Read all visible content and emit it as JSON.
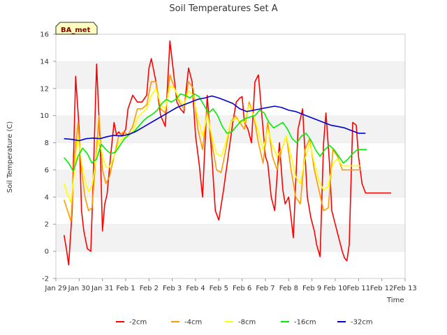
{
  "chart_data": {
    "type": "line",
    "title": "Soil Temperatures Set A",
    "xlabel": "Time",
    "ylabel": "Soil Temperature (C)",
    "badge": "BA_met",
    "ylim": [
      -2,
      16
    ],
    "yticks": [
      -2,
      0,
      2,
      4,
      6,
      8,
      10,
      12,
      14,
      16
    ],
    "xlim": [
      0,
      15
    ],
    "xticks": [
      0,
      1,
      2,
      3,
      4,
      5,
      6,
      7,
      8,
      9,
      10,
      11,
      12,
      13,
      14,
      15
    ],
    "xtick_labels": [
      "Jan 29",
      "Jan 30",
      "Jan 31",
      "Feb 1",
      "Feb 2",
      "Feb 3",
      "Feb 4",
      "Feb 5",
      "Feb 6",
      "Feb 7",
      "Feb 8",
      "Feb 9",
      "Feb 10",
      "Feb 11",
      "Feb 12",
      "Feb 13"
    ],
    "grid": "horizontal bands",
    "legend_position": "bottom",
    "series": [
      {
        "name": "-2cm",
        "color": "#ff0000",
        "x": [
          0.35,
          0.45,
          0.55,
          0.7,
          0.85,
          1.0,
          1.1,
          1.2,
          1.35,
          1.5,
          1.6,
          1.75,
          1.9,
          2.0,
          2.1,
          2.2,
          2.35,
          2.5,
          2.6,
          2.7,
          2.85,
          3.0,
          3.1,
          3.3,
          3.5,
          3.7,
          3.9,
          4.0,
          4.1,
          4.3,
          4.5,
          4.7,
          4.9,
          5.1,
          5.2,
          5.35,
          5.5,
          5.6,
          5.7,
          5.85,
          6.0,
          6.15,
          6.3,
          6.5,
          6.7,
          6.85,
          7.0,
          7.2,
          7.4,
          7.6,
          7.75,
          7.9,
          8.0,
          8.1,
          8.25,
          8.4,
          8.55,
          8.7,
          8.85,
          9.0,
          9.1,
          9.25,
          9.4,
          9.6,
          9.75,
          9.85,
          10.0,
          10.1,
          10.2,
          10.4,
          10.6,
          10.8,
          10.95,
          11.1,
          11.2,
          11.35,
          11.5,
          11.6,
          11.75,
          11.85,
          12.0,
          12.15,
          12.3,
          12.4,
          12.5,
          12.6,
          12.75,
          12.9,
          13.0,
          13.15,
          13.3,
          13.4,
          13.55,
          13.7,
          13.85,
          14.0,
          14.15,
          14.3,
          14.4
        ],
        "y": [
          1.2,
          0.2,
          -1.0,
          3.0,
          12.9,
          9.0,
          3.0,
          1.5,
          0.2,
          0.0,
          5.0,
          13.8,
          8.0,
          1.5,
          3.5,
          4.2,
          7.0,
          9.5,
          8.6,
          8.8,
          8.5,
          9.0,
          10.5,
          11.5,
          11.0,
          11.0,
          11.5,
          13.5,
          14.2,
          12.5,
          10.0,
          9.2,
          15.5,
          12.5,
          11.0,
          10.5,
          10.2,
          12.0,
          13.5,
          12.5,
          8.5,
          6.5,
          4.0,
          11.5,
          7.0,
          3.0,
          2.3,
          4.5,
          7.0,
          9.5,
          11.0,
          11.3,
          11.4,
          9.5,
          9.0,
          8.0,
          12.5,
          13.0,
          10.0,
          7.0,
          6.5,
          4.0,
          3.0,
          8.0,
          4.5,
          3.5,
          4.0,
          2.5,
          1.0,
          9.0,
          10.5,
          4.0,
          2.5,
          1.5,
          0.5,
          -0.4,
          8.0,
          10.2,
          6.5,
          3.0,
          2.0,
          1.0,
          0.0,
          -0.5,
          -0.7,
          0.5,
          9.5,
          9.3,
          7.0,
          5.0,
          4.3,
          4.3,
          4.3,
          4.3,
          4.3,
          4.3,
          4.3,
          4.3,
          4.3
        ]
      },
      {
        "name": "-4cm",
        "color": "#ff9900",
        "x": [
          0.35,
          0.5,
          0.65,
          0.8,
          0.95,
          1.1,
          1.25,
          1.4,
          1.55,
          1.7,
          1.85,
          2.0,
          2.15,
          2.3,
          2.5,
          2.7,
          2.9,
          3.1,
          3.3,
          3.5,
          3.7,
          3.9,
          4.1,
          4.3,
          4.5,
          4.7,
          4.9,
          5.1,
          5.3,
          5.5,
          5.7,
          5.9,
          6.1,
          6.3,
          6.5,
          6.7,
          6.9,
          7.1,
          7.3,
          7.5,
          7.7,
          7.9,
          8.1,
          8.3,
          8.5,
          8.7,
          8.9,
          9.1,
          9.3,
          9.5,
          9.7,
          9.9,
          10.1,
          10.3,
          10.5,
          10.7,
          10.9,
          11.1,
          11.3,
          11.5,
          11.7,
          11.9,
          12.1,
          12.3,
          12.5,
          12.7,
          12.9,
          13.1
        ],
        "y": [
          3.8,
          3.0,
          2.2,
          7.0,
          9.5,
          6.0,
          4.0,
          3.0,
          3.2,
          6.5,
          10.0,
          6.0,
          5.0,
          5.5,
          7.0,
          8.5,
          8.8,
          8.6,
          9.2,
          10.5,
          10.5,
          10.8,
          12.5,
          12.5,
          10.5,
          10.2,
          13.0,
          12.0,
          11.0,
          10.5,
          12.5,
          12.0,
          9.0,
          7.5,
          10.5,
          8.0,
          6.0,
          5.8,
          7.5,
          9.5,
          10.0,
          9.5,
          9.0,
          11.0,
          10.0,
          8.0,
          6.5,
          9.5,
          7.0,
          6.0,
          7.5,
          8.5,
          6.0,
          4.0,
          3.5,
          7.5,
          8.3,
          6.0,
          4.5,
          3.0,
          3.2,
          7.5,
          7.0,
          6.0,
          6.0,
          6.0,
          6.0,
          6.0
        ]
      },
      {
        "name": "-8cm",
        "color": "#ffff00",
        "x": [
          0.35,
          0.5,
          0.65,
          0.8,
          0.95,
          1.1,
          1.25,
          1.4,
          1.55,
          1.7,
          1.85,
          2.0,
          2.15,
          2.3,
          2.5,
          2.7,
          2.9,
          3.1,
          3.3,
          3.5,
          3.7,
          3.9,
          4.1,
          4.3,
          4.5,
          4.7,
          4.9,
          5.1,
          5.3,
          5.5,
          5.7,
          5.9,
          6.1,
          6.3,
          6.5,
          6.7,
          6.9,
          7.1,
          7.3,
          7.5,
          7.7,
          7.9,
          8.1,
          8.3,
          8.5,
          8.7,
          8.9,
          9.1,
          9.3,
          9.5,
          9.7,
          9.9,
          10.1,
          10.3,
          10.5,
          10.7,
          10.9,
          11.1,
          11.3,
          11.5,
          11.7,
          11.9,
          12.1,
          12.3,
          12.5,
          12.7,
          12.9,
          13.1
        ],
        "y": [
          5.0,
          4.2,
          3.6,
          6.0,
          8.5,
          6.5,
          5.2,
          4.4,
          4.8,
          6.5,
          8.5,
          7.0,
          6.2,
          6.2,
          7.0,
          8.0,
          8.4,
          8.5,
          8.8,
          9.8,
          10.2,
          10.5,
          11.5,
          12.0,
          10.8,
          10.5,
          12.2,
          12.0,
          11.2,
          10.8,
          11.8,
          11.5,
          9.8,
          8.5,
          10.0,
          8.5,
          7.2,
          7.0,
          8.0,
          9.5,
          9.8,
          9.6,
          9.5,
          10.8,
          10.0,
          8.8,
          7.5,
          9.0,
          7.8,
          7.0,
          7.5,
          8.5,
          7.0,
          5.5,
          5.0,
          6.8,
          8.0,
          6.5,
          5.2,
          4.5,
          4.8,
          6.5,
          6.8,
          6.3,
          6.3,
          6.3,
          6.3,
          6.3
        ]
      },
      {
        "name": "-16cm",
        "color": "#00ee00",
        "x": [
          0.35,
          0.55,
          0.75,
          0.95,
          1.15,
          1.35,
          1.55,
          1.75,
          1.95,
          2.15,
          2.35,
          2.55,
          2.75,
          2.95,
          3.15,
          3.35,
          3.55,
          3.75,
          3.95,
          4.15,
          4.35,
          4.55,
          4.75,
          4.95,
          5.15,
          5.35,
          5.55,
          5.75,
          5.95,
          6.15,
          6.35,
          6.55,
          6.75,
          6.95,
          7.15,
          7.35,
          7.55,
          7.75,
          7.95,
          8.15,
          8.35,
          8.55,
          8.75,
          8.95,
          9.15,
          9.35,
          9.55,
          9.75,
          9.95,
          10.15,
          10.35,
          10.55,
          10.75,
          10.95,
          11.15,
          11.35,
          11.55,
          11.75,
          11.95,
          12.15,
          12.35,
          12.55,
          12.75,
          12.95,
          13.15,
          13.35
        ],
        "y": [
          6.9,
          6.5,
          5.9,
          7.0,
          7.6,
          7.2,
          6.5,
          6.8,
          7.9,
          7.5,
          7.2,
          7.3,
          7.8,
          8.3,
          8.6,
          8.8,
          9.2,
          9.6,
          9.9,
          10.1,
          10.4,
          10.9,
          11.2,
          11.0,
          11.2,
          11.6,
          11.5,
          11.3,
          11.6,
          11.4,
          10.8,
          10.2,
          10.5,
          10.0,
          9.2,
          8.7,
          8.8,
          9.2,
          9.6,
          9.8,
          9.9,
          10.0,
          10.4,
          10.2,
          9.5,
          9.1,
          9.3,
          9.5,
          9.0,
          8.3,
          8.0,
          8.5,
          8.7,
          8.2,
          7.5,
          7.0,
          7.5,
          7.8,
          7.5,
          7.0,
          6.5,
          6.8,
          7.2,
          7.5,
          7.5,
          7.5
        ]
      },
      {
        "name": "-32cm",
        "color": "#0000cc",
        "x": [
          0.35,
          0.7,
          1.0,
          1.3,
          1.6,
          1.9,
          2.2,
          2.5,
          2.8,
          3.1,
          3.4,
          3.7,
          4.0,
          4.3,
          4.6,
          4.9,
          5.2,
          5.5,
          5.8,
          6.1,
          6.4,
          6.7,
          7.0,
          7.3,
          7.6,
          7.9,
          8.2,
          8.5,
          8.8,
          9.1,
          9.4,
          9.7,
          10.0,
          10.3,
          10.6,
          10.9,
          11.2,
          11.5,
          11.8,
          12.1,
          12.4,
          12.7,
          13.0,
          13.3
        ],
        "y": [
          8.3,
          8.25,
          8.15,
          8.3,
          8.35,
          8.3,
          8.45,
          8.55,
          8.5,
          8.6,
          8.8,
          9.1,
          9.4,
          9.7,
          10.0,
          10.3,
          10.6,
          10.8,
          11.0,
          11.2,
          11.3,
          11.45,
          11.3,
          11.1,
          10.9,
          10.5,
          10.3,
          10.4,
          10.5,
          10.6,
          10.7,
          10.6,
          10.4,
          10.3,
          10.1,
          9.9,
          9.7,
          9.5,
          9.3,
          9.2,
          9.1,
          8.9,
          8.7,
          8.7
        ]
      }
    ]
  }
}
